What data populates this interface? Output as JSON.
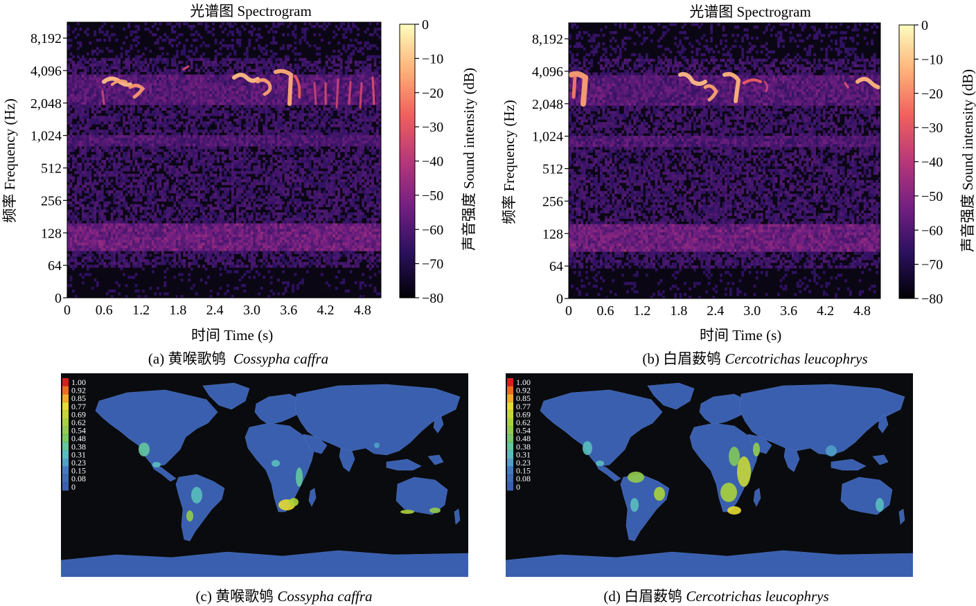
{
  "chart_data": [
    {
      "id": "a",
      "type": "heatmap",
      "title": "光谱图 Spectrogram",
      "xlabel": "时间 Time (s)",
      "ylabel": "频率 Frequency (Hz)",
      "x_ticks": [
        "0",
        "0.6",
        "1.2",
        "1.8",
        "2.4",
        "3.0",
        "3.6",
        "4.2",
        "4.8"
      ],
      "y_ticks": [
        "0",
        "64",
        "128",
        "256",
        "512",
        "1,024",
        "2,048",
        "4,096",
        "8,192"
      ],
      "xlim": [
        0,
        5.1
      ],
      "y_scale": "log2",
      "colorbar": {
        "label": "声音强度 Sound intensity (dB)",
        "ticks": [
          "0",
          "−10",
          "−20",
          "−30",
          "−40",
          "−50",
          "−60",
          "−70",
          "−80"
        ],
        "range": [
          -80,
          0
        ]
      },
      "caption_prefix": "(a) 黄喉歌鸲",
      "caption_species": "Cossypha caffra"
    },
    {
      "id": "b",
      "type": "heatmap",
      "title": "光谱图 Spectrogram",
      "xlabel": "时间 Time (s)",
      "ylabel": "频率 Frequency (Hz)",
      "x_ticks": [
        "0",
        "0.6",
        "1.2",
        "1.8",
        "2.4",
        "3.0",
        "3.6",
        "4.2",
        "4.8"
      ],
      "y_ticks": [
        "0",
        "64",
        "128",
        "256",
        "512",
        "1,024",
        "2,048",
        "4,096",
        "8,192"
      ],
      "xlim": [
        0,
        5.1
      ],
      "y_scale": "log2",
      "colorbar": {
        "label": "声音强度 Sound intensity (dB)",
        "ticks": [
          "0",
          "−10",
          "−20",
          "−30",
          "−40",
          "−50",
          "−60",
          "−70",
          "−80"
        ],
        "range": [
          -80,
          0
        ]
      },
      "caption_prefix": "(b) 白眉薮鸲",
      "caption_species": "Cercotrichas leucophrys"
    },
    {
      "id": "c",
      "type": "heatmap",
      "scale_labels": [
        "1.00",
        "0.92",
        "0.85",
        "0.77",
        "0.69",
        "0.62",
        "0.54",
        "0.48",
        "0.38",
        "0.31",
        "0.23",
        "0.15",
        "0.08",
        "0"
      ],
      "caption_prefix": "(c) 黄喉歌鸲",
      "caption_species": "Cossypha caffra"
    },
    {
      "id": "d",
      "type": "heatmap",
      "scale_labels": [
        "1.00",
        "0.92",
        "0.85",
        "0.77",
        "0.69",
        "0.62",
        "0.54",
        "0.48",
        "0.38",
        "0.31",
        "0.23",
        "0.15",
        "0.08",
        "0"
      ],
      "caption_prefix": "(d) 白眉薮鸲",
      "caption_species": "Cercotrichas leucophrys"
    }
  ],
  "colors": {
    "map_background": "#0a0b0e",
    "land": "#3a5fae",
    "magma_stops": [
      "#000004",
      "#2c115f",
      "#721f81",
      "#b73779",
      "#f1605d",
      "#feb078",
      "#fcfdbf"
    ]
  }
}
